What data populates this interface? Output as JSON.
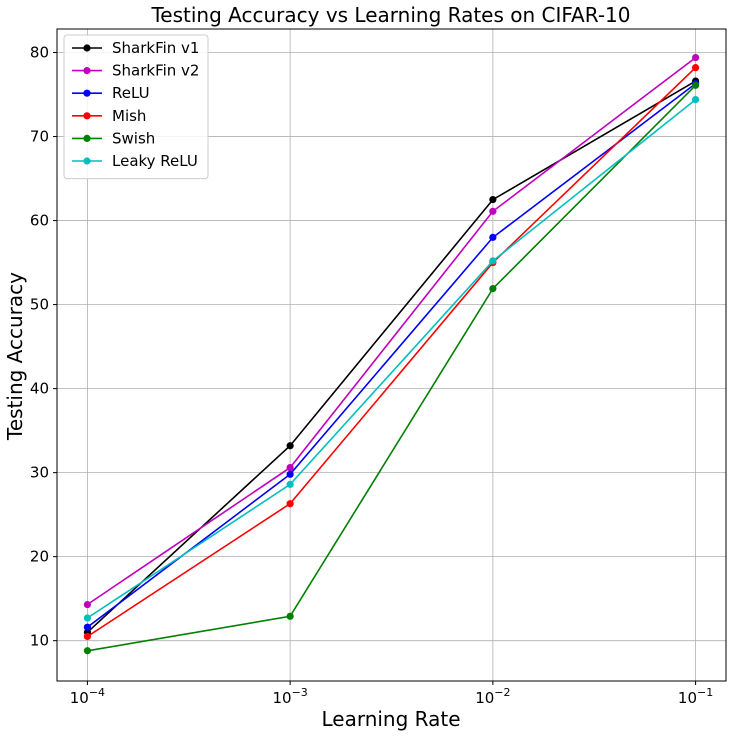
{
  "chart_data": {
    "type": "line",
    "title": "Testing Accuracy vs Learning Rates on CIFAR-10",
    "xlabel": "Learning Rate",
    "ylabel": "Testing Accuracy",
    "xscale": "log",
    "x": [
      0.0001,
      0.001,
      0.01,
      0.1
    ],
    "x_tick_labels": [
      {
        "base": "10",
        "exp": "−4"
      },
      {
        "base": "10",
        "exp": "−3"
      },
      {
        "base": "10",
        "exp": "−2"
      },
      {
        "base": "10",
        "exp": "−1"
      }
    ],
    "y_ticks": [
      10,
      20,
      30,
      40,
      50,
      60,
      70,
      80
    ],
    "y_tick_labels": [
      "10",
      "20",
      "30",
      "40",
      "50",
      "60",
      "70",
      "80"
    ],
    "ylim": [
      5.2,
      82.8
    ],
    "xlim_log10": [
      -4.15,
      -0.85
    ],
    "grid": true,
    "legend_position": "top-left",
    "series": [
      {
        "name": "SharkFin v1",
        "color": "#000000",
        "values": [
          11.0,
          33.2,
          62.5,
          76.6
        ]
      },
      {
        "name": "SharkFin v2",
        "color": "#bf00bf",
        "values": [
          14.3,
          30.6,
          61.1,
          79.4
        ]
      },
      {
        "name": "ReLU",
        "color": "#0000ff",
        "values": [
          11.6,
          29.8,
          58.0,
          76.3
        ]
      },
      {
        "name": "Mish",
        "color": "#ff0000",
        "values": [
          10.5,
          26.3,
          55.0,
          78.2
        ]
      },
      {
        "name": "Swish",
        "color": "#008000",
        "values": [
          8.8,
          12.9,
          51.9,
          76.1
        ]
      },
      {
        "name": "Leaky ReLU",
        "color": "#00bfbf",
        "values": [
          12.7,
          28.6,
          55.2,
          74.4
        ]
      }
    ]
  }
}
